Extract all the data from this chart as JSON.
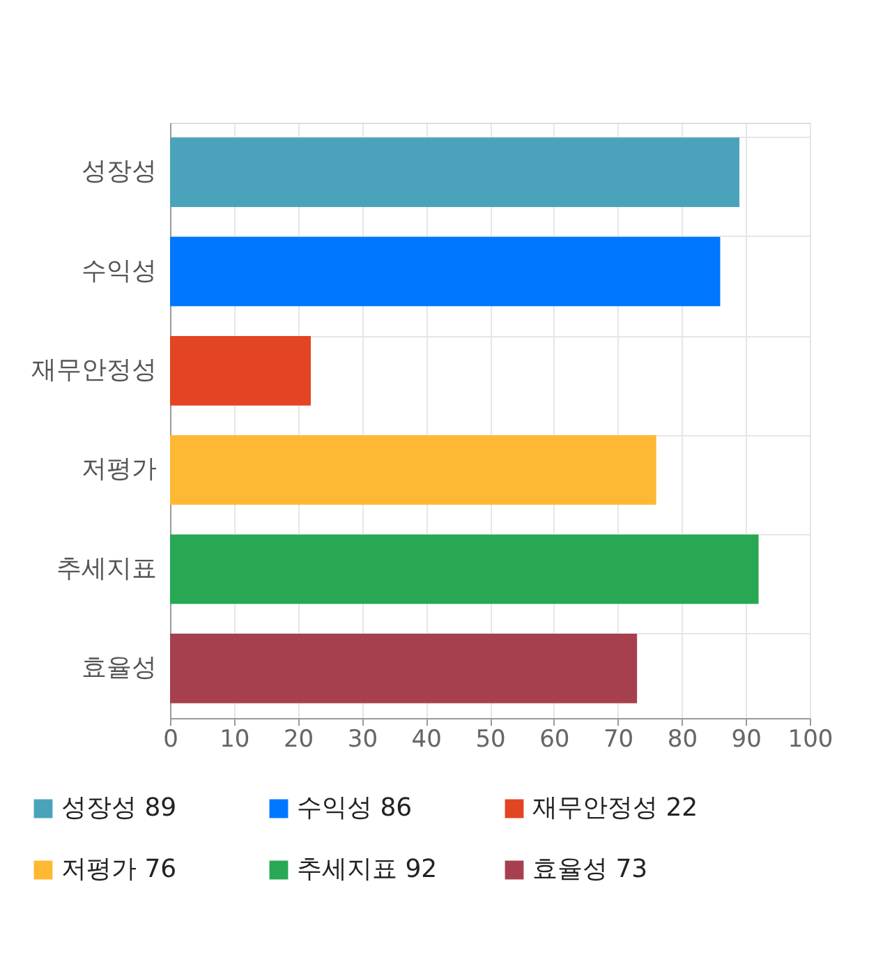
{
  "chart_data": {
    "type": "bar",
    "orientation": "horizontal",
    "categories": [
      "성장성",
      "수익성",
      "재무안정성",
      "저평가",
      "추세지표",
      "효율성"
    ],
    "series": [
      {
        "name": "성장성 89",
        "color": "#4aa3bb",
        "values": [
          89,
          null,
          null,
          null,
          null,
          null
        ]
      },
      {
        "name": "수익성 86",
        "color": "#0077ff",
        "values": [
          null,
          86,
          null,
          null,
          null,
          null
        ]
      },
      {
        "name": "재무안정성 22",
        "color": "#e34424",
        "values": [
          null,
          null,
          22,
          null,
          null,
          null
        ]
      },
      {
        "name": "저평가 76",
        "color": "#ffb833",
        "values": [
          null,
          null,
          null,
          76,
          null,
          null
        ]
      },
      {
        "name": "추세지표 92",
        "color": "#28a854",
        "values": [
          null,
          null,
          null,
          null,
          92,
          null
        ]
      },
      {
        "name": "효율성 73",
        "color": "#a6404f",
        "values": [
          null,
          null,
          null,
          null,
          null,
          73
        ]
      }
    ],
    "xlim": [
      0,
      100
    ],
    "xticks": [
      0,
      10,
      20,
      30,
      40,
      50,
      60,
      70,
      80,
      90,
      100
    ],
    "grid": true,
    "legend": "bottom"
  }
}
